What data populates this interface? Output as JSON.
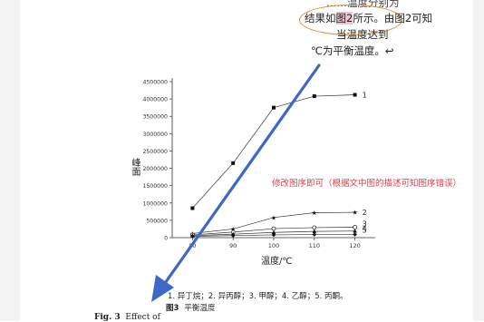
{
  "annotation": {
    "top_fragment": "……温度分别为",
    "line1_prefix": "结果如",
    "line1_highlight": "图2",
    "line1_suffix": "所示。由图2可知",
    "line2": "当温度达到",
    "line3": "℃为平衡温度。↩"
  },
  "note_red": "修改图序即可（根据文中图的描述可知图序错误）",
  "colors": {
    "arrow": "#3f67c6",
    "ellipse": "#e08a3c",
    "highlight": "#f2c3d2",
    "note": "#d9414b"
  },
  "chart_data": {
    "type": "line",
    "x": [
      80,
      90,
      100,
      110,
      120
    ],
    "xlabel": "温度/℃",
    "ylabel": "峰面",
    "ylim": [
      0,
      4500000
    ],
    "yticks": [
      0,
      500000,
      1000000,
      1500000,
      2000000,
      2500000,
      3000000,
      3500000,
      4000000,
      4500000
    ],
    "ytick_labels": [
      "0",
      "500000",
      "1000000",
      "1500000",
      "2000000",
      "2500000",
      "3000000",
      "3500000",
      "4000000",
      "4500000"
    ],
    "xtick_labels": [
      "80",
      "90",
      "100",
      "110",
      "120"
    ],
    "series": [
      {
        "name": "1",
        "marker": "square",
        "values": [
          850000,
          2150000,
          3750000,
          4080000,
          4120000
        ]
      },
      {
        "name": "2",
        "marker": "star",
        "values": [
          120000,
          250000,
          580000,
          720000,
          730000
        ]
      },
      {
        "name": "3",
        "marker": "circle",
        "values": [
          80000,
          160000,
          260000,
          290000,
          300000
        ]
      },
      {
        "name": "4",
        "marker": "triangle",
        "values": [
          60000,
          100000,
          150000,
          180000,
          190000
        ]
      },
      {
        "name": "5",
        "marker": "diamond",
        "values": [
          40000,
          60000,
          80000,
          90000,
          90000
        ]
      }
    ]
  },
  "legend_text": "1. 异丁烷；2. 异丙醇；3. 甲醇；4. 乙醇；5. 丙酮。",
  "figure_caption": {
    "number": "图3",
    "title": "平衡温度"
  },
  "figure_caption_en": {
    "number": "Fig. 3",
    "title": "Effect of"
  }
}
